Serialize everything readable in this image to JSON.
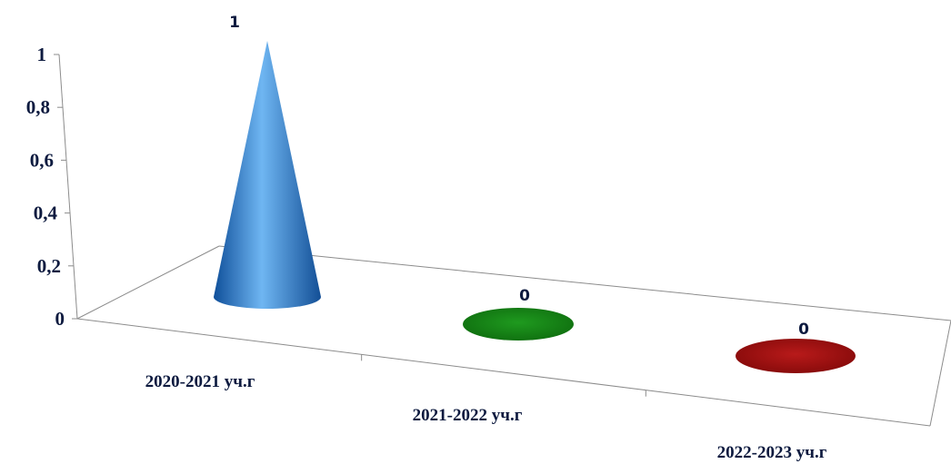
{
  "chart_data": {
    "type": "bar",
    "style": "3d-cone",
    "categories": [
      "2020-2021 уч.г",
      "2021-2022 уч.г",
      "2022-2023 уч.г"
    ],
    "values": [
      1,
      0,
      0
    ],
    "data_labels": [
      "1",
      "0",
      "0"
    ],
    "colors": [
      "#2f86d8",
      "#1a8a1a",
      "#a31212"
    ],
    "y_ticks": [
      "0",
      "0,2",
      "0,4",
      "0,6",
      "0,8",
      "1"
    ],
    "ylim": [
      0,
      1
    ],
    "grid": false,
    "legend": "none"
  }
}
